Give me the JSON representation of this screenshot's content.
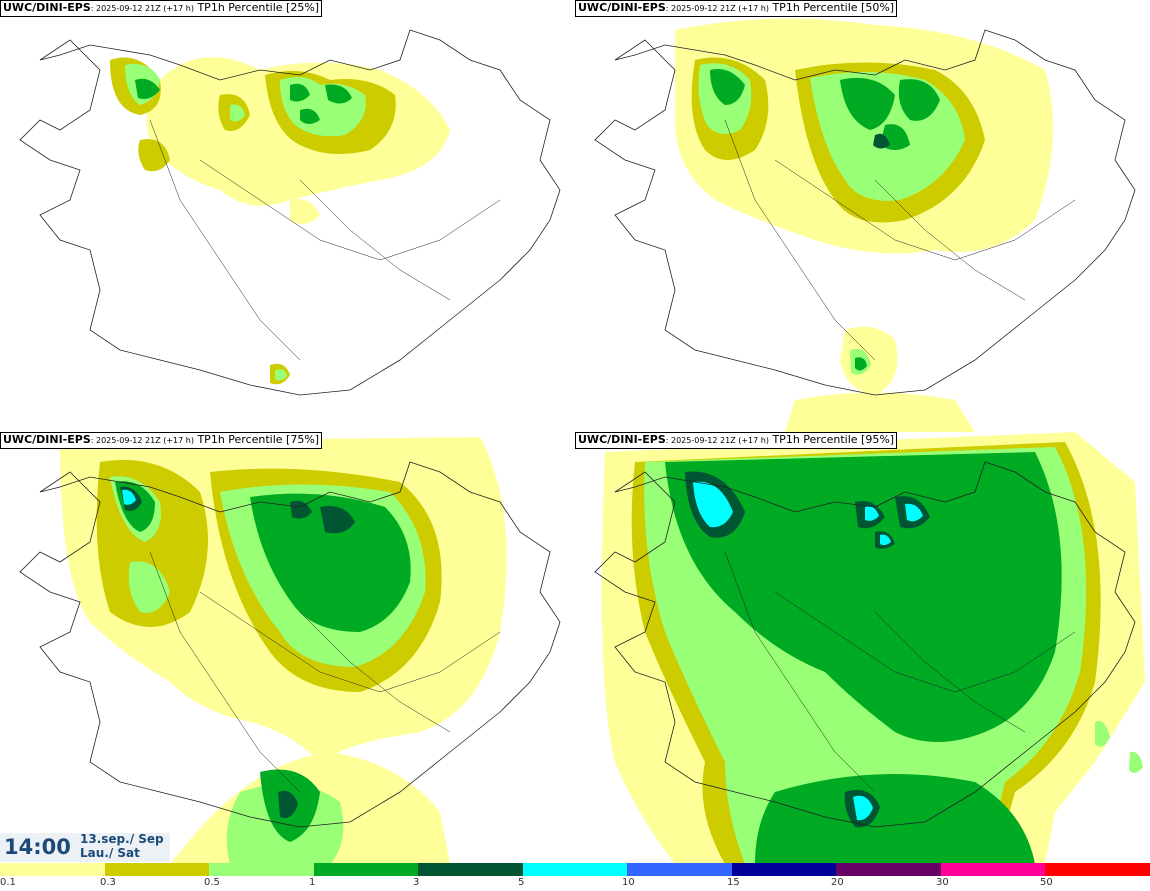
{
  "panels": [
    {
      "model": "UWC/DINI-EPS",
      "run": ": 2025-09-12 21Z (+17 h)",
      "label": " TP1h Percentile [25%]"
    },
    {
      "model": "UWC/DINI-EPS",
      "run": ": 2025-09-12 21Z (+17 h)",
      "label": " TP1h Percentile [50%]"
    },
    {
      "model": "UWC/DINI-EPS",
      "run": ": 2025-09-12 21Z (+17 h)",
      "label": " TP1h Percentile [75%]"
    },
    {
      "model": "UWC/DINI-EPS",
      "run": ": 2025-09-12 21Z (+17 h)",
      "label": " TP1h Percentile [95%]"
    }
  ],
  "time": {
    "clock": "14:00",
    "date_line1": "13.sep./ Sep",
    "date_line2": "Lau./ Sat"
  },
  "legend": {
    "colors": [
      "#ffff99",
      "#cccc00",
      "#99ff77",
      "#00aa22",
      "#005533",
      "#00ffff",
      "#3366ff",
      "#000099",
      "#660066",
      "#ff0099",
      "#ff0000"
    ],
    "tick_labels": [
      "0.1",
      "0.3",
      "0.5",
      "1",
      "3",
      "5",
      "10",
      "15",
      "20",
      "30",
      "50"
    ]
  }
}
